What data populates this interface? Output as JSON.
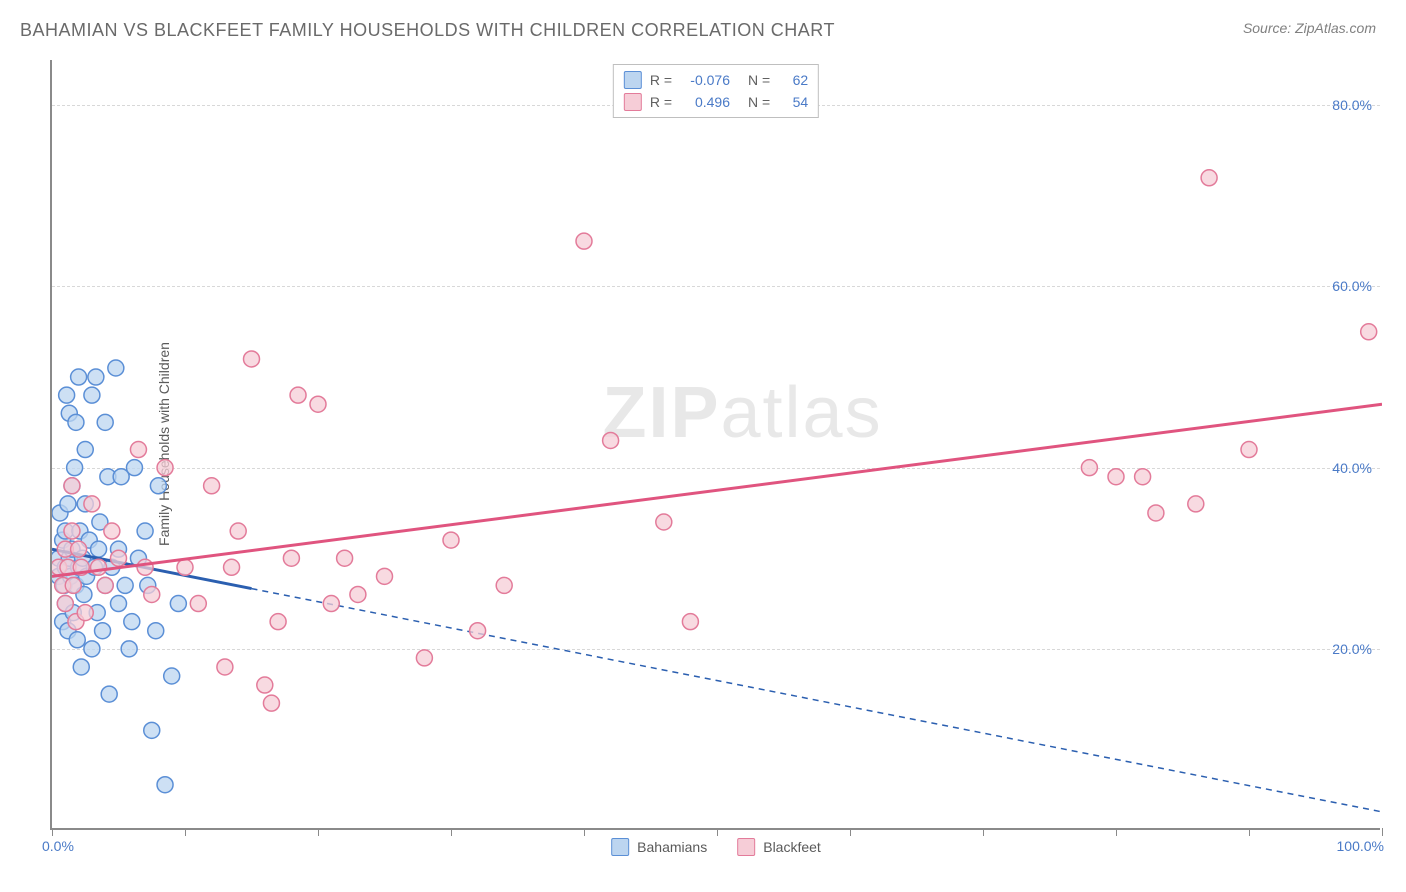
{
  "title": "BAHAMIAN VS BLACKFEET FAMILY HOUSEHOLDS WITH CHILDREN CORRELATION CHART",
  "source": "Source: ZipAtlas.com",
  "ylabel": "Family Households with Children",
  "watermark_a": "ZIP",
  "watermark_b": "atlas",
  "chart": {
    "type": "scatter",
    "xlim": [
      0,
      100
    ],
    "ylim": [
      0,
      85
    ],
    "x_ticks": [
      0,
      10,
      20,
      30,
      40,
      50,
      60,
      70,
      80,
      90,
      100
    ],
    "y_gridlines": [
      20,
      40,
      60,
      80
    ],
    "y_tick_labels": [
      "20.0%",
      "40.0%",
      "60.0%",
      "80.0%"
    ],
    "x_min_label": "0.0%",
    "x_max_label": "100.0%",
    "grid_color": "#d8d8d8",
    "axis_color": "#8a8a8a",
    "label_color": "#4a7ac7",
    "label_fontsize": 14,
    "series": [
      {
        "name": "Bahamians",
        "fill": "#bcd5f0",
        "stroke": "#5b8fd6",
        "line_color": "#2b5fb0",
        "line_solid_to_x": 15,
        "trend": {
          "x1": 0,
          "y1": 31,
          "x2": 100,
          "y2": 2
        },
        "R": "-0.076",
        "N": "62",
        "points": [
          [
            0.5,
            30
          ],
          [
            0.5,
            28
          ],
          [
            0.6,
            35
          ],
          [
            0.8,
            23
          ],
          [
            0.8,
            32
          ],
          [
            0.9,
            27
          ],
          [
            1.0,
            25
          ],
          [
            1.0,
            29
          ],
          [
            1.0,
            33
          ],
          [
            1.1,
            48
          ],
          [
            1.2,
            36
          ],
          [
            1.2,
            22
          ],
          [
            1.3,
            30
          ],
          [
            1.3,
            46
          ],
          [
            1.4,
            28
          ],
          [
            1.5,
            31
          ],
          [
            1.5,
            38
          ],
          [
            1.6,
            24
          ],
          [
            1.8,
            45
          ],
          [
            1.8,
            27
          ],
          [
            1.9,
            21
          ],
          [
            2.0,
            50
          ],
          [
            2.0,
            29
          ],
          [
            2.1,
            33
          ],
          [
            2.2,
            18
          ],
          [
            2.3,
            30
          ],
          [
            2.4,
            26
          ],
          [
            2.5,
            36
          ],
          [
            2.6,
            28
          ],
          [
            2.8,
            32
          ],
          [
            3.0,
            48
          ],
          [
            3.0,
            20
          ],
          [
            3.2,
            29
          ],
          [
            3.3,
            50
          ],
          [
            3.4,
            24
          ],
          [
            3.5,
            31
          ],
          [
            3.6,
            34
          ],
          [
            3.8,
            22
          ],
          [
            4.0,
            27
          ],
          [
            4.2,
            39
          ],
          [
            4.3,
            15
          ],
          [
            4.5,
            29
          ],
          [
            4.8,
            51
          ],
          [
            5.0,
            25
          ],
          [
            5.0,
            31
          ],
          [
            5.2,
            39
          ],
          [
            5.5,
            27
          ],
          [
            5.8,
            20
          ],
          [
            6.0,
            23
          ],
          [
            6.2,
            40
          ],
          [
            6.5,
            30
          ],
          [
            7.0,
            33
          ],
          [
            7.2,
            27
          ],
          [
            7.5,
            11
          ],
          [
            7.8,
            22
          ],
          [
            8.0,
            38
          ],
          [
            8.5,
            5
          ],
          [
            9.0,
            17
          ],
          [
            9.5,
            25
          ],
          [
            4.0,
            45
          ],
          [
            2.5,
            42
          ],
          [
            1.7,
            40
          ]
        ]
      },
      {
        "name": "Blackfeet",
        "fill": "#f6cdd7",
        "stroke": "#e37b9a",
        "line_color": "#e0547f",
        "line_solid_to_x": 100,
        "trend": {
          "x1": 0,
          "y1": 28,
          "x2": 100,
          "y2": 47
        },
        "R": "0.496",
        "N": "54",
        "points": [
          [
            0.5,
            29
          ],
          [
            0.8,
            27
          ],
          [
            1.0,
            31
          ],
          [
            1.0,
            25
          ],
          [
            1.2,
            29
          ],
          [
            1.5,
            38
          ],
          [
            1.5,
            33
          ],
          [
            1.6,
            27
          ],
          [
            1.8,
            23
          ],
          [
            2.0,
            31
          ],
          [
            2.2,
            29
          ],
          [
            2.5,
            24
          ],
          [
            3.0,
            36
          ],
          [
            3.5,
            29
          ],
          [
            4.0,
            27
          ],
          [
            4.5,
            33
          ],
          [
            5.0,
            30
          ],
          [
            6.5,
            42
          ],
          [
            7.0,
            29
          ],
          [
            7.5,
            26
          ],
          [
            8.5,
            40
          ],
          [
            10,
            29
          ],
          [
            11,
            25
          ],
          [
            12,
            38
          ],
          [
            13,
            18
          ],
          [
            13.5,
            29
          ],
          [
            14,
            33
          ],
          [
            15,
            52
          ],
          [
            16,
            16
          ],
          [
            16.5,
            14
          ],
          [
            17,
            23
          ],
          [
            18,
            30
          ],
          [
            18.5,
            48
          ],
          [
            20,
            47
          ],
          [
            21,
            25
          ],
          [
            22,
            30
          ],
          [
            23,
            26
          ],
          [
            25,
            28
          ],
          [
            28,
            19
          ],
          [
            30,
            32
          ],
          [
            32,
            22
          ],
          [
            34,
            27
          ],
          [
            40,
            65
          ],
          [
            42,
            43
          ],
          [
            46,
            34
          ],
          [
            48,
            23
          ],
          [
            78,
            40
          ],
          [
            80,
            39
          ],
          [
            82,
            39
          ],
          [
            83,
            35
          ],
          [
            86,
            36
          ],
          [
            87,
            72
          ],
          [
            90,
            42
          ],
          [
            99,
            55
          ]
        ]
      }
    ],
    "legend_bottom": [
      {
        "label": "Bahamians",
        "fill": "#bcd5f0",
        "stroke": "#5b8fd6"
      },
      {
        "label": "Blackfeet",
        "fill": "#f6cdd7",
        "stroke": "#e37b9a"
      }
    ]
  }
}
